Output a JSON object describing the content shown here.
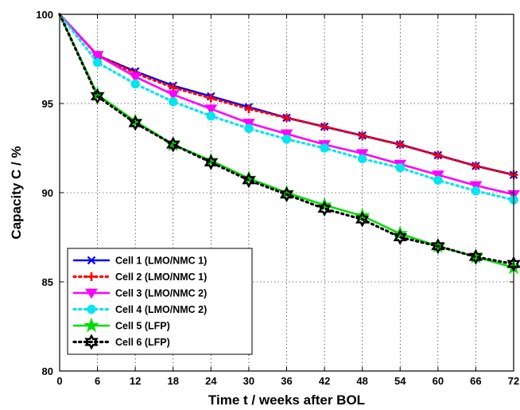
{
  "chart_data": {
    "type": "line",
    "title": "",
    "xlabel": "Time t / weeks after BOL",
    "ylabel": "Capacity C / %",
    "xlim": [
      0,
      72
    ],
    "ylim": [
      80,
      100
    ],
    "x_ticks": [
      "0",
      "6",
      "12",
      "18",
      "24",
      "30",
      "36",
      "42",
      "48",
      "54",
      "60",
      "66",
      "72"
    ],
    "y_ticks": [
      "80",
      "85",
      "90",
      "95",
      "100"
    ],
    "grid": true,
    "legend_position": "bottom-left",
    "x": [
      0,
      6,
      12,
      18,
      24,
      30,
      36,
      42,
      48,
      54,
      60,
      66,
      72
    ],
    "series": [
      {
        "name": "Cell 1 (LMO/NMC 1)",
        "color": "#0000ff",
        "line_style": "solid",
        "marker": "x",
        "values": [
          100,
          97.7,
          96.8,
          96.0,
          95.4,
          94.8,
          94.2,
          93.7,
          93.2,
          92.7,
          92.1,
          91.5,
          91.0
        ]
      },
      {
        "name": "Cell 2 (LMO/NMC 1)",
        "color": "#ff0000",
        "line_style": "dotted",
        "marker": "plus",
        "values": [
          100,
          97.7,
          96.7,
          95.9,
          95.3,
          94.7,
          94.2,
          93.7,
          93.2,
          92.7,
          92.1,
          91.5,
          91.0
        ]
      },
      {
        "name": "Cell 3 (LMO/NMC 2)",
        "color": "#ff00ff",
        "line_style": "solid",
        "marker": "triangle-down",
        "values": [
          100,
          97.7,
          96.5,
          95.5,
          94.7,
          93.9,
          93.3,
          92.7,
          92.2,
          91.6,
          91.0,
          90.4,
          89.9
        ]
      },
      {
        "name": "Cell 4 (LMO/NMC 2)",
        "color": "#00e5ee",
        "line_style": "dotted",
        "marker": "circle",
        "values": [
          100,
          97.3,
          96.1,
          95.1,
          94.3,
          93.6,
          93.0,
          92.5,
          91.9,
          91.4,
          90.7,
          90.1,
          89.6
        ]
      },
      {
        "name": "Cell 5 (LFP)",
        "color": "#00dd00",
        "line_style": "solid",
        "marker": "star",
        "values": [
          100,
          95.5,
          94.0,
          92.7,
          91.8,
          90.8,
          90.0,
          89.3,
          88.7,
          87.7,
          87.0,
          86.4,
          85.8
        ]
      },
      {
        "name": "Cell 6 (LFP)",
        "color": "#000000",
        "line_style": "dotted",
        "marker": "hexagram",
        "values": [
          100,
          95.4,
          93.9,
          92.7,
          91.7,
          90.7,
          89.9,
          89.1,
          88.5,
          87.5,
          87.0,
          86.4,
          86.0
        ]
      }
    ]
  }
}
